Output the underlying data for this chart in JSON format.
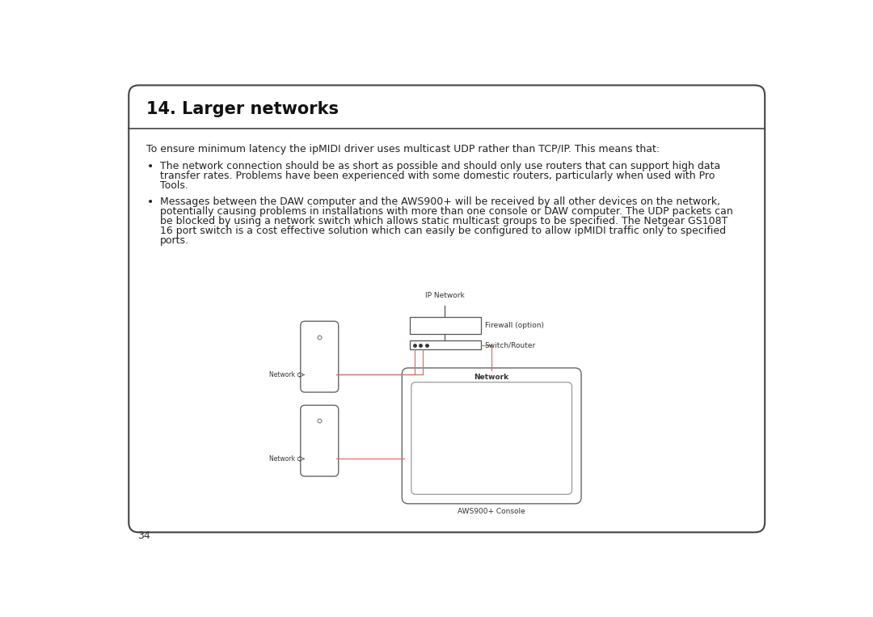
{
  "bg_color": "#ffffff",
  "border_color": "#444444",
  "title": "14. Larger networks",
  "title_fontsize": 15,
  "body_text_fontsize": 9.0,
  "page_number": "34",
  "intro_text": "To ensure minimum latency the ipMIDI driver uses multicast UDP rather than TCP/IP. This means that:",
  "bullet1_lines": [
    "The network connection should be as short as possible and should only use routers that can support high data",
    "transfer rates. Problems have been experienced with some domestic routers, particularly when used with Pro",
    "Tools."
  ],
  "bullet2_lines": [
    "Messages between the DAW computer and the AWS900+ will be received by all other devices on the network,",
    "potentially causing problems in installations with more than one console or DAW computer. The UDP packets can",
    "be blocked by using a network switch which allows static multicast groups to be specified. The Netgear GS108T",
    "16 port switch is a cost effective solution which can easily be configured to allow ipMIDI traffic only to specified",
    "ports."
  ],
  "diagram": {
    "ip_network_label": "IP Network",
    "firewall_label": "Firewall (option)",
    "switch_label": "Switch/Router",
    "network_label": "Network",
    "aws_label": "AWS900+ Console",
    "network_c_label": "Network c",
    "line_color_red": "#d97070",
    "line_color_dark": "#555555"
  }
}
